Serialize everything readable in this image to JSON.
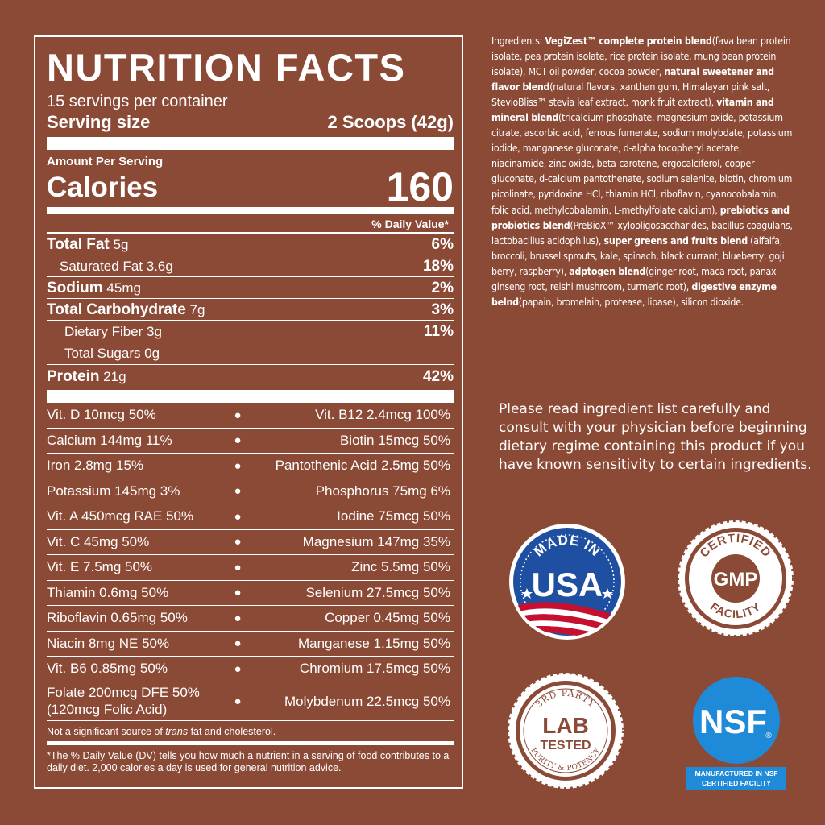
{
  "nutrition": {
    "title": "NUTRITION FACTS",
    "servings": "15 servings per container",
    "serving_size_label": "Serving size",
    "serving_size_value": "2 Scoops (42g)",
    "amount_per_serving": "Amount Per Serving",
    "calories_label": "Calories",
    "calories_value": "160",
    "dv_header": "% Daily Value*",
    "nutrients": [
      {
        "name": "Total Fat",
        "amount": "5g",
        "pct": "6%"
      },
      {
        "name": "Saturated Fat 3.6g",
        "pct": "18%"
      },
      {
        "name": "Sodium",
        "amount": "45mg",
        "pct": "2%"
      },
      {
        "name": "Total Carbohydrate",
        "amount": "7g",
        "pct": "3%"
      },
      {
        "name": "Dietary Fiber 3g",
        "pct": "11%"
      },
      {
        "name": "Total Sugars 0g",
        "pct": ""
      },
      {
        "name": "Protein",
        "amount": "21g",
        "pct": "42%"
      }
    ],
    "vitamins": [
      {
        "left": "Vit. D 10mcg 50%",
        "right": "Vit. B12 2.4mcg 100%"
      },
      {
        "left": "Calcium 144mg 11%",
        "right": "Biotin 15mcg 50%"
      },
      {
        "left": "Iron 2.8mg 15%",
        "right": "Pantothenic Acid 2.5mg 50%"
      },
      {
        "left": "Potassium 145mg 3%",
        "right": "Phosphorus 75mg 6%"
      },
      {
        "left": "Vit. A 450mcg RAE 50%",
        "right": "Iodine 75mcg 50%"
      },
      {
        "left": "Vit. C 45mg 50%",
        "right": "Magnesium 147mg 35%"
      },
      {
        "left": "Vit. E 7.5mg 50%",
        "right": "Zinc 5.5mg 50%"
      },
      {
        "left": "Thiamin 0.6mg 50%",
        "right": "Selenium 27.5mcg 50%"
      },
      {
        "left": "Riboflavin 0.65mg 50%",
        "right": "Copper 0.45mg 50%"
      },
      {
        "left": "Niacin 8mg NE 50%",
        "right": "Manganese 1.15mg 50%"
      },
      {
        "left": "Vit. B6 0.85mg 50%",
        "right": "Chromium 17.5mcg 50%"
      }
    ],
    "folate_line1": "Folate 200mcg DFE 50%",
    "folate_line2": "(120mcg Folic Acid)",
    "folate_right": "Molybdenum 22.5mcg 50%",
    "bullet": "●",
    "trans_note_pre": "Not a significant source of ",
    "trans_note_em": "trans",
    "trans_note_post": " fat and cholesterol.",
    "dv_note": "*The % Daily Value (DV) tells you how much a nutrient in a serving of food contributes to a daily diet. 2,000 calories a day is used for general nutrition advice."
  },
  "ingredients": [
    {
      "t": "Ingredients: ",
      "b": false
    },
    {
      "t": "VegiZest™ complete protein blend",
      "b": true
    },
    {
      "t": "(fava bean protein isolate, pea protein isolate, rice protein isolate, mung bean protein isolate), MCT oil powder, cocoa powder, ",
      "b": false
    },
    {
      "t": "natural sweetener and flavor blend",
      "b": true
    },
    {
      "t": "(natural flavors, xanthan gum, Himalayan pink salt, StevioBliss™ stevia leaf extract, monk fruit extract), ",
      "b": false
    },
    {
      "t": "vitamin and mineral blend",
      "b": true
    },
    {
      "t": "(tricalcium phosphate, magnesium oxide, potassium citrate, ascorbic acid, ferrous fumerate, sodium molybdate, potassium iodide, manganese gluconate, d-alpha tocopheryl acetate, niacinamide, zinc oxide, beta-carotene, ergocalciferol, copper gluconate, d-calcium pantothenate, sodium selenite, biotin, chromium picolinate, pyridoxine HCl, thiamin HCl, riboflavin, cyanocobalamin, folic acid, methylcobalamin, L-methylfolate calcium), ",
      "b": false
    },
    {
      "t": "prebiotics and probiotics blend",
      "b": true
    },
    {
      "t": "(PreBioX™ xylooligosaccharides, bacillus coagulans, lactobacillus acidophilus), ",
      "b": false
    },
    {
      "t": "super greens and fruits blend",
      "b": true
    },
    {
      "t": " (alfalfa, broccoli, brussel sprouts, kale, spinach, black currant, blueberry, goji berry, raspberry), ",
      "b": false
    },
    {
      "t": "adptogen blend",
      "b": true
    },
    {
      "t": "(ginger root, maca root, panax ginseng root, reishi mushroom, turmeric root), ",
      "b": false
    },
    {
      "t": "digestive enzyme belnd",
      "b": true
    },
    {
      "t": "(papain, bromelain, protease, lipase), silicon dioxide.",
      "b": false
    }
  ],
  "warning": "Please read ingredient list carefully and consult with your physician before beginning dietary regime containing this product if you have known sensitivity to certain ingredients.",
  "badges": {
    "usa": {
      "top": "MADE IN",
      "main": "USA"
    },
    "gmp": {
      "top": "CERTIFIED",
      "main": "GMP",
      "bottom": "FACILITY"
    },
    "lab": {
      "top": "3RD PARTY",
      "main1": "LAB",
      "main2": "TESTED",
      "bottom": "PURITY & POTENCY"
    },
    "nsf": {
      "main": "NSF",
      "reg": "®",
      "caption1": "MANUFACTURED IN NSF",
      "caption2": "CERTIFIED FACILITY"
    }
  },
  "colors": {
    "background": "#8b4a36",
    "usa_blue": "#1f4fa0",
    "usa_red": "#c8102e",
    "nsf_blue": "#1f8ad8"
  }
}
